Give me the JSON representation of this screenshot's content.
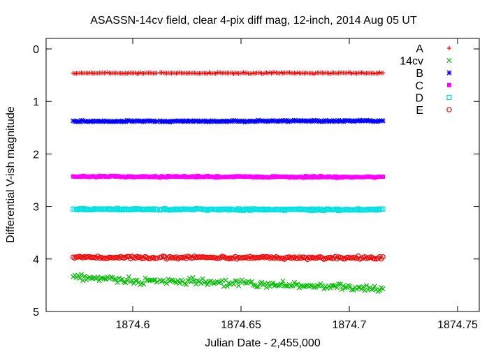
{
  "chart_data": {
    "type": "scatter",
    "title": "ASASSN-14cv field, clear 4-pix diff mag, 12-inch, 2014 Aug 05 UT",
    "xlabel": "Julian Date - 2,455,000",
    "ylabel": "Differential V-ish magnitude",
    "xlim": [
      1874.56,
      1874.76
    ],
    "ylim": [
      5,
      -0.2
    ],
    "y_inverted": true,
    "xticks": [
      "1874.6",
      "1874.65",
      "1874.7",
      "1874.75"
    ],
    "xtick_values": [
      1874.6,
      1874.65,
      1874.7,
      1874.75
    ],
    "yticks": [
      "0",
      "1",
      "2",
      "3",
      "4",
      "5"
    ],
    "ytick_values": [
      0,
      1,
      2,
      3,
      4,
      5
    ],
    "grid": false,
    "legend_position": "top-right",
    "x_range": [
      1874.5725,
      1874.7155
    ],
    "gap": [
      1874.6115,
      1874.6125
    ],
    "series": [
      {
        "name": "A",
        "marker": "plus",
        "color": "#ff0000",
        "trend": [
          [
            1874.5725,
            0.46
          ],
          [
            1874.7155,
            0.46
          ]
        ],
        "scatter": 0.02
      },
      {
        "name": "14cv",
        "marker": "x",
        "color": "#00c000",
        "trend": [
          [
            1874.5725,
            4.33
          ],
          [
            1874.585,
            4.35
          ],
          [
            1874.6,
            4.42
          ],
          [
            1874.625,
            4.44
          ],
          [
            1874.65,
            4.46
          ],
          [
            1874.675,
            4.5
          ],
          [
            1874.7,
            4.54
          ],
          [
            1874.7155,
            4.57
          ]
        ],
        "scatter": 0.09
      },
      {
        "name": "B",
        "marker": "star",
        "color": "#0000ff",
        "trend": [
          [
            1874.5725,
            1.38
          ],
          [
            1874.7155,
            1.37
          ]
        ],
        "scatter": 0.02
      },
      {
        "name": "C",
        "marker": "square-filled",
        "color": "#ff00ff",
        "trend": [
          [
            1874.5725,
            2.43
          ],
          [
            1874.7155,
            2.44
          ]
        ],
        "scatter": 0.02
      },
      {
        "name": "D",
        "marker": "square-open",
        "color": "#00e0e0",
        "trend": [
          [
            1874.5725,
            3.05
          ],
          [
            1874.7155,
            3.06
          ]
        ],
        "scatter": 0.025
      },
      {
        "name": "E",
        "marker": "circle-open",
        "color": "#ff0000",
        "trend": [
          [
            1874.5725,
            3.97
          ],
          [
            1874.7155,
            3.98
          ]
        ],
        "scatter": 0.04
      }
    ]
  }
}
